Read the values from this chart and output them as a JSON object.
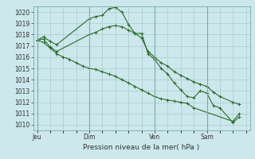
{
  "background_color": "#cce8ec",
  "grid_color": "#aacccc",
  "line_color": "#2d6a2d",
  "marker_color": "#2d6a2d",
  "title": "Pression niveau de la mer( hPa )",
  "ylim": [
    1009.5,
    1020.5
  ],
  "yticks": [
    1010,
    1011,
    1012,
    1013,
    1014,
    1015,
    1016,
    1017,
    1018,
    1019,
    1020
  ],
  "xtick_labels": [
    "Jeu",
    "Dim",
    "Ven",
    "Sam"
  ],
  "xtick_positions": [
    0,
    4,
    9,
    13
  ],
  "xmax": 16,
  "series1_x": [
    0,
    0.5,
    1,
    1.5,
    4,
    4.5,
    5,
    5.5,
    6,
    6.5,
    7,
    7.5,
    8,
    8.5,
    9,
    9.5,
    10,
    10.5,
    11,
    11.5,
    12,
    12.5,
    13,
    13.5,
    14,
    15,
    15.5
  ],
  "series1_y": [
    1017.5,
    1017.8,
    1017.4,
    1017.1,
    1019.4,
    1019.6,
    1019.7,
    1020.3,
    1020.4,
    1020.0,
    1018.9,
    1018.1,
    1018.1,
    1016.3,
    1015.8,
    1015.0,
    1014.5,
    1013.7,
    1013.1,
    1012.5,
    1012.4,
    1013.0,
    1012.8,
    1011.7,
    1011.5,
    1010.2,
    1010.7
  ],
  "series2_x": [
    0,
    0.5,
    1,
    1.5,
    4,
    4.5,
    5,
    5.5,
    6,
    6.5,
    7,
    7.5,
    8,
    8.5,
    9,
    9.5,
    10,
    10.5,
    11,
    11.5,
    12,
    12.5,
    13,
    13.5,
    14,
    15,
    15.5
  ],
  "series2_y": [
    1017.5,
    1017.6,
    1016.9,
    1016.5,
    1018.0,
    1018.2,
    1018.5,
    1018.7,
    1018.8,
    1018.7,
    1018.4,
    1018.1,
    1017.7,
    1016.5,
    1016.0,
    1015.5,
    1015.2,
    1014.7,
    1014.4,
    1014.1,
    1013.8,
    1013.6,
    1013.4,
    1012.9,
    1012.5,
    1012.0,
    1011.8
  ],
  "series3_x": [
    0,
    0.5,
    1,
    1.5,
    2,
    2.5,
    3,
    3.5,
    4,
    4.5,
    5,
    5.5,
    6,
    6.5,
    7,
    7.5,
    8,
    8.5,
    9,
    9.5,
    10,
    10.5,
    11,
    11.5,
    12,
    15,
    15.5
  ],
  "series3_y": [
    1017.5,
    1017.3,
    1016.8,
    1016.3,
    1016.0,
    1015.8,
    1015.5,
    1015.2,
    1015.0,
    1014.9,
    1014.7,
    1014.5,
    1014.3,
    1014.0,
    1013.7,
    1013.4,
    1013.1,
    1012.8,
    1012.5,
    1012.3,
    1012.2,
    1012.1,
    1012.0,
    1011.9,
    1011.5,
    1010.3,
    1011.0
  ],
  "tick_fontsize": 5.5,
  "title_fontsize": 6.5,
  "linewidth": 0.8,
  "markersize": 1.8
}
